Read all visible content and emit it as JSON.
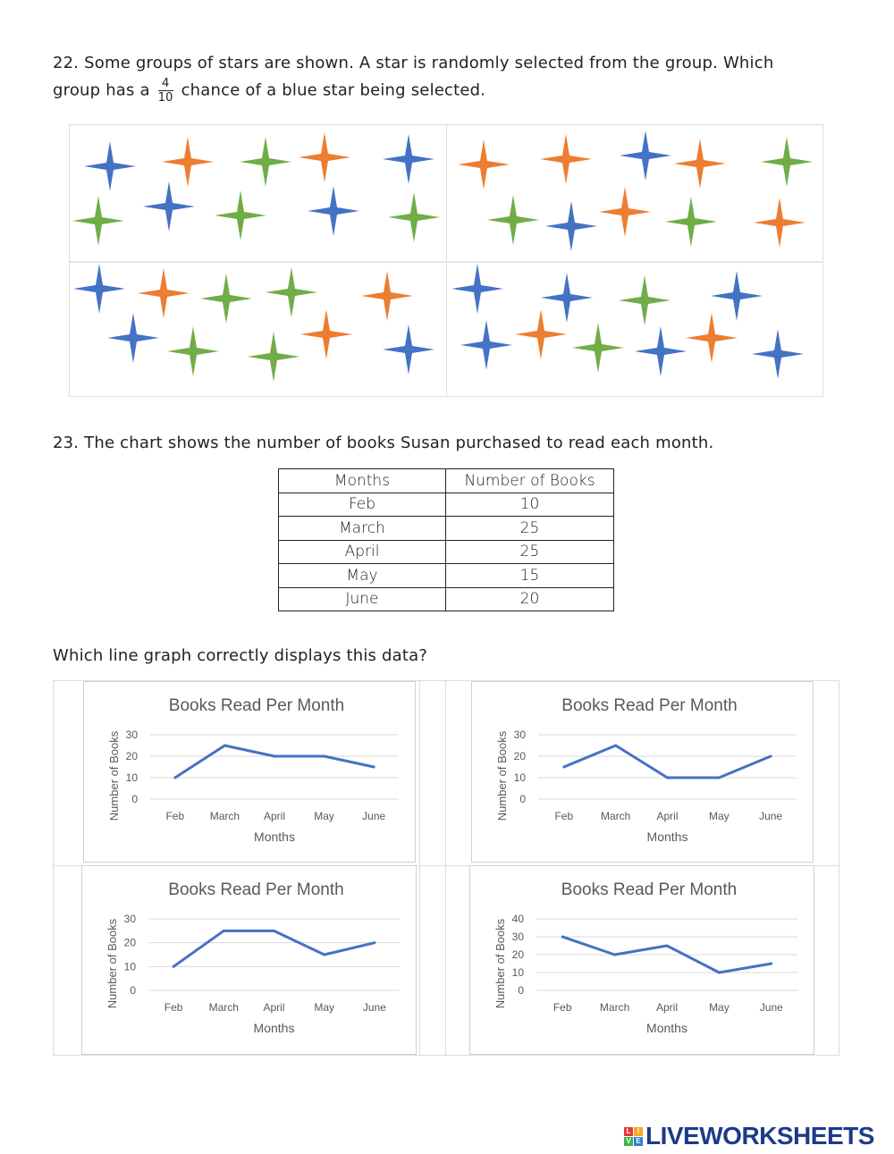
{
  "question22": {
    "text_part1": "22. Some groups of stars are shown. A star is randomly selected from the group. Which",
    "text_part2_before": "group has a",
    "fraction_numerator": "4",
    "fraction_denominator": "10",
    "text_part2_after": "chance of a blue star being selected.",
    "colors": {
      "blue": "#4472c4",
      "orange": "#ed7d31",
      "green": "#70ad47"
    },
    "groups": [
      {
        "stars": [
          "blue",
          "orange",
          "green",
          "orange",
          "blue",
          "green",
          "blue",
          "green",
          "blue",
          "green"
        ]
      },
      {
        "stars": [
          "orange",
          "orange",
          "blue",
          "orange",
          "green",
          "green",
          "blue",
          "orange",
          "green",
          "orange"
        ]
      },
      {
        "stars": [
          "blue",
          "orange",
          "green",
          "green",
          "orange",
          "blue",
          "green",
          "green",
          "orange",
          "blue"
        ]
      },
      {
        "stars": [
          "blue",
          "blue",
          "green",
          "blue",
          "blue",
          "orange",
          "green",
          "blue",
          "orange",
          "blue"
        ]
      }
    ]
  },
  "question23": {
    "text": "23. The chart shows the number of books Susan purchased to read each month.",
    "table": {
      "headers": [
        "Months",
        "Number of Books"
      ],
      "rows": [
        [
          "Feb",
          "10"
        ],
        [
          "March",
          "25"
        ],
        [
          "April",
          "25"
        ],
        [
          "May",
          "15"
        ],
        [
          "June",
          "20"
        ]
      ]
    },
    "prompt": "Which line graph correctly displays this data?"
  },
  "chart_data": [
    {
      "type": "line",
      "title": "Books Read Per Month",
      "xlabel": "Months",
      "ylabel": "Number of Books",
      "categories": [
        "Feb",
        "March",
        "April",
        "May",
        "June"
      ],
      "values": [
        10,
        25,
        20,
        20,
        15
      ],
      "yticks": [
        0,
        10,
        20,
        30
      ],
      "ylim": [
        0,
        30
      ],
      "grid": true,
      "color": "#4472c4"
    },
    {
      "type": "line",
      "title": "Books Read Per Month",
      "xlabel": "Months",
      "ylabel": "Number of Books",
      "categories": [
        "Feb",
        "March",
        "April",
        "May",
        "June"
      ],
      "values": [
        15,
        25,
        10,
        10,
        20
      ],
      "yticks": [
        0,
        10,
        20,
        30
      ],
      "ylim": [
        0,
        30
      ],
      "grid": true,
      "color": "#4472c4"
    },
    {
      "type": "line",
      "title": "Books Read Per Month",
      "xlabel": "Months",
      "ylabel": "Number of Books",
      "categories": [
        "Feb",
        "March",
        "April",
        "May",
        "June"
      ],
      "values": [
        10,
        25,
        25,
        15,
        20
      ],
      "yticks": [
        0,
        10,
        20,
        30
      ],
      "ylim": [
        0,
        30
      ],
      "grid": true,
      "color": "#4472c4"
    },
    {
      "type": "line",
      "title": "Books Read Per Month",
      "xlabel": "Months",
      "ylabel": "Number of Books",
      "categories": [
        "Feb",
        "March",
        "April",
        "May",
        "June"
      ],
      "values": [
        30,
        20,
        25,
        10,
        15
      ],
      "yticks": [
        0,
        10,
        20,
        30,
        40
      ],
      "ylim": [
        0,
        40
      ],
      "grid": true,
      "color": "#4472c4"
    }
  ],
  "logo": {
    "text": "LIVEWORKSHEETS",
    "letters": [
      "L",
      "I",
      "V",
      "E"
    ]
  }
}
